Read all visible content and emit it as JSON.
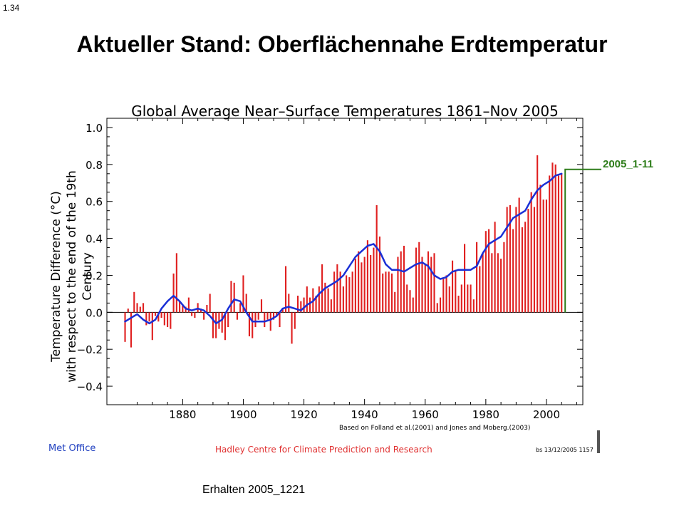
{
  "slide_number": "1.34",
  "slide_title": "Aktueller Stand: Oberflächennahe Erdtemperatur",
  "received_note": "Erhalten 2005_1221",
  "callout_label": "2005_1-11",
  "colors": {
    "bars": "#e02020",
    "smooth": "#1a2fd6",
    "callout": "#2e7d1a",
    "met_office": "#2040c0",
    "hadley": "#e03030"
  },
  "chart_data": {
    "type": "bar",
    "title": "Global Average Near–Surface Temperatures 1861–Nov 2005",
    "ylabel_line1": "Temperature Difference (°C)",
    "ylabel_line2": "with respect to the end of the 19th Century",
    "xlabel": "",
    "xlim": [
      1855,
      2012
    ],
    "ylim": [
      -0.5,
      1.05
    ],
    "x_ticks": [
      1880,
      1900,
      1920,
      1940,
      1960,
      1980,
      2000
    ],
    "x_tick_labels": [
      "1880",
      "1900",
      "1920",
      "1940",
      "1960",
      "1980",
      "2000"
    ],
    "y_ticks": [
      -0.4,
      -0.2,
      0.0,
      0.2,
      0.4,
      0.6,
      0.8,
      1.0
    ],
    "y_tick_labels": [
      "−0.4",
      "−0.2",
      "0.0",
      "0.2",
      "0.4",
      "0.6",
      "0.8",
      "1.0"
    ],
    "source_note": "Based on Folland et al.(2001) and Jones and Moberg.(2003)",
    "footer_left": "Met Office",
    "footer_center": "Hadley Centre for Climate Prediction and Research",
    "footer_right": "bs  13/12/2005 1157",
    "series": [
      {
        "kind": "bars",
        "x": [
          1861,
          1862,
          1863,
          1864,
          1865,
          1866,
          1867,
          1868,
          1869,
          1870,
          1871,
          1872,
          1873,
          1874,
          1875,
          1876,
          1877,
          1878,
          1879,
          1880,
          1881,
          1882,
          1883,
          1884,
          1885,
          1886,
          1887,
          1888,
          1889,
          1890,
          1891,
          1892,
          1893,
          1894,
          1895,
          1896,
          1897,
          1898,
          1899,
          1900,
          1901,
          1902,
          1903,
          1904,
          1905,
          1906,
          1907,
          1908,
          1909,
          1910,
          1911,
          1912,
          1913,
          1914,
          1915,
          1916,
          1917,
          1918,
          1919,
          1920,
          1921,
          1922,
          1923,
          1924,
          1925,
          1926,
          1927,
          1928,
          1929,
          1930,
          1931,
          1932,
          1933,
          1934,
          1935,
          1936,
          1937,
          1938,
          1939,
          1940,
          1941,
          1942,
          1943,
          1944,
          1945,
          1946,
          1947,
          1948,
          1949,
          1950,
          1951,
          1952,
          1953,
          1954,
          1955,
          1956,
          1957,
          1958,
          1959,
          1960,
          1961,
          1962,
          1963,
          1964,
          1965,
          1966,
          1967,
          1968,
          1969,
          1970,
          1971,
          1972,
          1973,
          1974,
          1975,
          1976,
          1977,
          1978,
          1979,
          1980,
          1981,
          1982,
          1983,
          1984,
          1985,
          1986,
          1987,
          1988,
          1989,
          1990,
          1991,
          1992,
          1993,
          1994,
          1995,
          1996,
          1997,
          1998,
          1999,
          2000,
          2001,
          2002,
          2003,
          2004,
          2005
        ],
        "values": [
          -0.16,
          0.02,
          -0.19,
          0.11,
          0.05,
          0.03,
          0.05,
          -0.07,
          -0.05,
          -0.15,
          -0.02,
          -0.05,
          -0.03,
          -0.07,
          -0.08,
          -0.09,
          0.21,
          0.32,
          0.06,
          0.04,
          0.03,
          0.08,
          -0.02,
          -0.03,
          0.05,
          0.02,
          -0.04,
          0.04,
          0.1,
          -0.14,
          -0.14,
          -0.09,
          -0.11,
          -0.15,
          -0.08,
          0.17,
          0.16,
          -0.04,
          0.05,
          0.2,
          0.1,
          -0.13,
          -0.14,
          -0.08,
          -0.04,
          0.07,
          -0.08,
          -0.04,
          -0.1,
          -0.04,
          -0.02,
          -0.08,
          0.02,
          0.25,
          0.1,
          -0.17,
          -0.09,
          0.09,
          0.06,
          0.08,
          0.14,
          0.08,
          0.13,
          0.09,
          0.14,
          0.26,
          0.16,
          0.13,
          0.07,
          0.22,
          0.26,
          0.22,
          0.14,
          0.2,
          0.19,
          0.22,
          0.29,
          0.33,
          0.27,
          0.3,
          0.39,
          0.31,
          0.35,
          0.58,
          0.41,
          0.21,
          0.22,
          0.22,
          0.21,
          0.11,
          0.3,
          0.33,
          0.36,
          0.15,
          0.12,
          0.08,
          0.35,
          0.38,
          0.3,
          0.26,
          0.33,
          0.3,
          0.32,
          0.05,
          0.08,
          0.18,
          0.2,
          0.14,
          0.28,
          0.23,
          0.09,
          0.15,
          0.37,
          0.15,
          0.15,
          0.07,
          0.38,
          0.25,
          0.32,
          0.44,
          0.45,
          0.32,
          0.49,
          0.32,
          0.29,
          0.38,
          0.57,
          0.58,
          0.45,
          0.57,
          0.62,
          0.46,
          0.49,
          0.56,
          0.65,
          0.57,
          0.85,
          0.69,
          0.61,
          0.61,
          0.74,
          0.81,
          0.8,
          0.74,
          0.75
        ]
      },
      {
        "kind": "smoothed",
        "x": [
          1861,
          1863,
          1865,
          1867,
          1869,
          1871,
          1873,
          1875,
          1877,
          1879,
          1881,
          1883,
          1885,
          1887,
          1889,
          1891,
          1893,
          1895,
          1897,
          1899,
          1901,
          1903,
          1905,
          1907,
          1909,
          1911,
          1913,
          1915,
          1917,
          1919,
          1921,
          1923,
          1925,
          1927,
          1929,
          1931,
          1933,
          1935,
          1937,
          1939,
          1941,
          1943,
          1945,
          1947,
          1949,
          1951,
          1953,
          1955,
          1957,
          1959,
          1961,
          1963,
          1965,
          1967,
          1969,
          1971,
          1973,
          1975,
          1977,
          1979,
          1981,
          1983,
          1985,
          1987,
          1989,
          1991,
          1993,
          1995,
          1997,
          1999,
          2001,
          2003,
          2005
        ],
        "values": [
          -0.05,
          -0.03,
          -0.01,
          -0.04,
          -0.06,
          -0.04,
          0.02,
          0.06,
          0.09,
          0.06,
          0.02,
          0.01,
          0.02,
          0.01,
          -0.02,
          -0.06,
          -0.04,
          0.02,
          0.07,
          0.06,
          0.0,
          -0.05,
          -0.05,
          -0.05,
          -0.04,
          -0.02,
          0.02,
          0.03,
          0.02,
          0.01,
          0.04,
          0.06,
          0.1,
          0.13,
          0.15,
          0.17,
          0.2,
          0.25,
          0.3,
          0.33,
          0.36,
          0.37,
          0.33,
          0.26,
          0.23,
          0.23,
          0.22,
          0.24,
          0.26,
          0.27,
          0.25,
          0.2,
          0.18,
          0.19,
          0.22,
          0.23,
          0.23,
          0.23,
          0.25,
          0.32,
          0.37,
          0.39,
          0.41,
          0.46,
          0.51,
          0.53,
          0.55,
          0.61,
          0.66,
          0.69,
          0.71,
          0.74,
          0.75
        ]
      }
    ]
  }
}
